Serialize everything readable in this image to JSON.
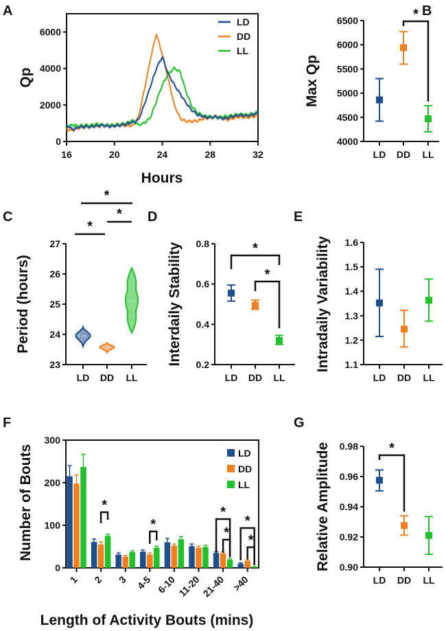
{
  "colors": {
    "LD": "#1f4e8c",
    "DD": "#f07f1f",
    "LL": "#22c02a",
    "axis": "#111111"
  },
  "chart_data": [
    {
      "panel": "A",
      "type": "line",
      "title": "",
      "xlabel": "Hours",
      "ylabel": "Qp",
      "xlim": [
        16,
        32
      ],
      "ylim": [
        0,
        7000
      ],
      "xticks": [
        16,
        20,
        24,
        28,
        32
      ],
      "yticks": [
        0,
        2000,
        4000,
        6000
      ],
      "legend": {
        "placement": "top-right",
        "entries": [
          "LD",
          "DD",
          "LL"
        ]
      },
      "series": [
        {
          "name": "LD",
          "x": [
            16,
            16.5,
            17,
            17.5,
            18,
            18.5,
            19,
            19.5,
            20,
            20.5,
            21,
            21.5,
            22,
            22.5,
            23,
            23.5,
            24,
            24.5,
            25,
            25.5,
            26,
            26.5,
            27,
            27.5,
            28,
            28.5,
            29,
            29.5,
            30,
            30.5,
            31,
            31.5,
            32
          ],
          "y": [
            900,
            650,
            780,
            820,
            800,
            850,
            870,
            820,
            850,
            900,
            950,
            1050,
            1150,
            2000,
            3000,
            4000,
            4650,
            3700,
            3100,
            2600,
            2100,
            1700,
            1450,
            1350,
            1300,
            1350,
            1250,
            1300,
            1400,
            1450,
            1400,
            1450,
            1550
          ]
        },
        {
          "name": "DD",
          "x": [
            16,
            16.5,
            17,
            17.5,
            18,
            18.5,
            19,
            19.5,
            20,
            20.5,
            21,
            21.5,
            22,
            22.5,
            23,
            23.5,
            24,
            24.5,
            25,
            25.5,
            26,
            26.5,
            27,
            27.5,
            28,
            28.5,
            29,
            29.5,
            30,
            30.5,
            31,
            31.5,
            32
          ],
          "y": [
            650,
            600,
            750,
            800,
            850,
            820,
            860,
            840,
            880,
            900,
            880,
            850,
            1300,
            2800,
            4500,
            5900,
            4800,
            3400,
            2000,
            1250,
            1100,
            1100,
            1150,
            1250,
            1300,
            1350,
            1250,
            1200,
            1300,
            1350,
            1300,
            1350,
            1400
          ]
        },
        {
          "name": "LL",
          "x": [
            16,
            16.5,
            17,
            17.5,
            18,
            18.5,
            19,
            19.5,
            20,
            20.5,
            21,
            21.5,
            22,
            22.5,
            23,
            23.5,
            24,
            24.5,
            25,
            25.5,
            26,
            26.5,
            27,
            27.5,
            28,
            28.5,
            29,
            29.5,
            30,
            30.5,
            31,
            31.5,
            32
          ],
          "y": [
            800,
            900,
            850,
            900,
            880,
            950,
            900,
            880,
            900,
            950,
            1000,
            1150,
            900,
            1000,
            1300,
            2200,
            3100,
            3700,
            4000,
            3800,
            2700,
            1900,
            1550,
            1400,
            1350,
            1300,
            1350,
            1400,
            1450,
            1500,
            1450,
            1500,
            1600
          ]
        }
      ]
    },
    {
      "panel": "B",
      "type": "scatter",
      "xlabel": "",
      "ylabel": "Max Qp",
      "categories": [
        "LD",
        "DD",
        "LL"
      ],
      "ylim": [
        4000,
        6500
      ],
      "yticks": [
        4000,
        4500,
        5000,
        5500,
        6000,
        6500
      ],
      "values": [
        4860,
        5940,
        4470
      ],
      "err_low": [
        4420,
        5600,
        4200
      ],
      "err_high": [
        5300,
        6270,
        4740
      ],
      "significance": [
        {
          "from": "DD",
          "to": "LL",
          "label": "*"
        }
      ]
    },
    {
      "panel": "C",
      "type": "violin",
      "xlabel": "",
      "ylabel": "Period (hours)",
      "categories": [
        "LD",
        "DD",
        "LL"
      ],
      "ylim": [
        23,
        27
      ],
      "yticks": [
        23,
        24,
        25,
        26,
        27
      ],
      "distributions": [
        {
          "name": "LD",
          "min": 23.6,
          "max": 24.25,
          "median": 23.95
        },
        {
          "name": "DD",
          "min": 23.4,
          "max": 23.72,
          "median": 23.55
        },
        {
          "name": "LL",
          "min": 24.05,
          "max": 26.2,
          "median": 25.1
        }
      ],
      "significance": [
        {
          "from": "LD",
          "to": "DD",
          "label": "*"
        },
        {
          "from": "DD",
          "to": "LL",
          "label": "*"
        },
        {
          "from": "LD",
          "to": "LL",
          "label": "*"
        }
      ]
    },
    {
      "panel": "D",
      "type": "scatter",
      "xlabel": "",
      "ylabel": "Interdaily Stability",
      "categories": [
        "LD",
        "DD",
        "LL"
      ],
      "ylim": [
        0.2,
        0.8
      ],
      "yticks": [
        0.2,
        0.4,
        0.6,
        0.8
      ],
      "values": [
        0.555,
        0.495,
        0.32
      ],
      "err_low": [
        0.515,
        0.475,
        0.3
      ],
      "err_high": [
        0.595,
        0.52,
        0.345
      ],
      "significance": [
        {
          "from": "LD",
          "to": "LL",
          "label": "*"
        },
        {
          "from": "DD",
          "to": "LL",
          "label": "*"
        }
      ]
    },
    {
      "panel": "E",
      "type": "scatter",
      "xlabel": "",
      "ylabel": "Intradaily Variability",
      "categories": [
        "LD",
        "DD",
        "LL"
      ],
      "ylim": [
        1.1,
        1.6
      ],
      "yticks": [
        1.1,
        1.2,
        1.3,
        1.4,
        1.5,
        1.6
      ],
      "values": [
        1.352,
        1.245,
        1.363
      ],
      "err_low": [
        1.215,
        1.172,
        1.278
      ],
      "err_high": [
        1.49,
        1.322,
        1.45
      ],
      "significance": []
    },
    {
      "panel": "F",
      "type": "bar",
      "xlabel": "Length of Activity Bouts (mins)",
      "ylabel": "Number of Bouts",
      "categories": [
        "1",
        "2",
        "3",
        "4-5",
        "6-10",
        "11-20",
        "21-40",
        ">40"
      ],
      "ylim": [
        0,
        300
      ],
      "yticks": [
        0,
        100,
        200,
        300
      ],
      "legend": {
        "placement": "top-right",
        "entries": [
          "LD",
          "DD",
          "LL"
        ]
      },
      "series": [
        {
          "name": "LD",
          "values": [
            215,
            61,
            31,
            38,
            60,
            51,
            35,
            10
          ],
          "errors": [
            25,
            7,
            4,
            4,
            9,
            5,
            3,
            2
          ]
        },
        {
          "name": "DD",
          "values": [
            198,
            55,
            26,
            31,
            52,
            47,
            34,
            16
          ],
          "errors": [
            20,
            6,
            3,
            4,
            4,
            4,
            3,
            2
          ]
        },
        {
          "name": "LL",
          "values": [
            237,
            75,
            37,
            47,
            67,
            49,
            19,
            2
          ],
          "errors": [
            30,
            4,
            3,
            4,
            6,
            4,
            2,
            1
          ]
        }
      ],
      "significance": [
        {
          "category": "2",
          "from": "DD",
          "to": "LL",
          "label": "*"
        },
        {
          "category": "4-5",
          "from": "DD",
          "to": "LL",
          "label": "*"
        },
        {
          "category": "21-40",
          "from": "LD",
          "to": "LL",
          "label": "*"
        },
        {
          "category": "21-40",
          "from": "DD",
          "to": "LL",
          "label": "*"
        },
        {
          "category": ">40",
          "from": "LD",
          "to": "LL",
          "label": "*"
        },
        {
          "category": ">40",
          "from": "DD",
          "to": "LL",
          "label": "*"
        }
      ]
    },
    {
      "panel": "G",
      "type": "scatter",
      "xlabel": "",
      "ylabel": "Relative Amplitude",
      "categories": [
        "LD",
        "DD",
        "LL"
      ],
      "ylim": [
        0.9,
        0.98
      ],
      "yticks": [
        0.9,
        0.92,
        0.94,
        0.96,
        0.98
      ],
      "values": [
        0.9575,
        0.9275,
        0.921
      ],
      "err_low": [
        0.9505,
        0.9212,
        0.9085
      ],
      "err_high": [
        0.9643,
        0.934,
        0.9335
      ],
      "significance": [
        {
          "from": "LD",
          "to": "DD",
          "label": "*"
        }
      ]
    }
  ]
}
